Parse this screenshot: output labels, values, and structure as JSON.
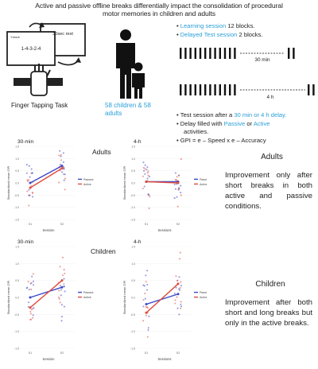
{
  "header": {
    "title_line1": "Active and passive offline breaks differentially impact the consolidation of procedural",
    "title_line2": "motor memories in children and adults"
  },
  "task": {
    "screen_left_text": "1-4-3-2-4",
    "screen_left_top": "Y-block",
    "screen_right_text": "30sec rest",
    "caption": "Finger Tapping Task"
  },
  "participants": {
    "caption": "58 children & 58 adults"
  },
  "design": {
    "bullets_top": [
      {
        "highlight": "Learning session",
        "text": " 12 blocks."
      },
      {
        "highlight": "Delayed Test session",
        "text": " 2 blocks."
      }
    ],
    "label_30min": "30 min",
    "label_4h": "4 h",
    "bullet_test": {
      "pre": "Test session after a ",
      "highlight": "30 min or 4 h delay.",
      "post": ""
    },
    "bullet_delay": {
      "pre": "Delay filled with ",
      "h1": "Passive",
      "mid": " or ",
      "h2": "Active",
      "post": " activities."
    },
    "bullet_gpi": "GPI = e – Speed x e – Accuracy"
  },
  "groups": {
    "adults_label": "Adults",
    "children_label": "Children"
  },
  "panels": [
    {
      "title": "30-min",
      "xlabel": "Session"
    },
    {
      "title": "4-h",
      "xlabel": "Sessions"
    },
    {
      "title": "30-min",
      "xlabel": "Session"
    },
    {
      "title": "4-h",
      "xlabel": "Sessions"
    }
  ],
  "axis": {
    "ylabel": "Standardized mean GPI",
    "ticks_x": [
      "S1",
      "S2"
    ]
  },
  "legend": {
    "passive": "Passive",
    "active": "Active"
  },
  "colors": {
    "passive": "#3b49c9",
    "active": "#e14a3c",
    "accent": "#2a9fd6"
  },
  "side": {
    "adults_title": "Adults",
    "adults_text": "Improvement only after short breaks in both active and passive conditions.",
    "children_title": "Children",
    "children_text": "Improvement after both short and long breaks but only in the active breaks."
  },
  "chart_data": [
    {
      "type": "line",
      "title": "30-min",
      "group": "Adults",
      "categories": [
        "S1",
        "S2"
      ],
      "series": [
        {
          "name": "Passive",
          "values": [
            0.0,
            0.7
          ]
        },
        {
          "name": "Active",
          "values": [
            -0.2,
            0.6
          ]
        }
      ]
    },
    {
      "type": "line",
      "title": "4-h",
      "group": "Adults",
      "categories": [
        "S1",
        "S2"
      ],
      "series": [
        {
          "name": "Passive",
          "values": [
            0.05,
            0.05
          ]
        },
        {
          "name": "Active",
          "values": [
            0.05,
            0.0
          ]
        }
      ]
    },
    {
      "type": "line",
      "title": "30-min",
      "group": "Children",
      "categories": [
        "S1",
        "S2"
      ],
      "series": [
        {
          "name": "Passive",
          "values": [
            0.0,
            0.3
          ]
        },
        {
          "name": "Active",
          "values": [
            -0.3,
            0.5
          ]
        }
      ]
    },
    {
      "type": "line",
      "title": "4-h",
      "group": "Children",
      "categories": [
        "S1",
        "S2"
      ],
      "series": [
        {
          "name": "Passive",
          "values": [
            -0.2,
            0.1
          ]
        },
        {
          "name": "Active",
          "values": [
            -0.45,
            0.4
          ]
        }
      ]
    }
  ]
}
